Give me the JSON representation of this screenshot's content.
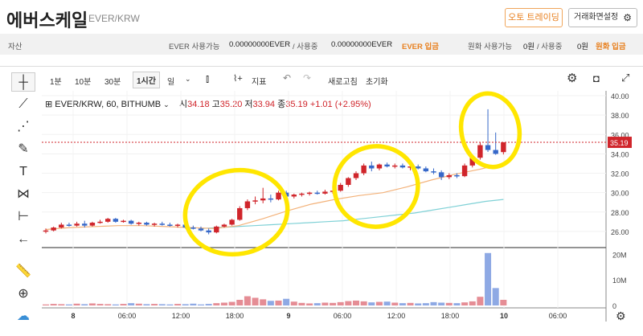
{
  "header": {
    "coin_name_ko": "에버스케일",
    "pair": "EVER/KRW",
    "auto_trading_button": "오토 트레이딩",
    "screen_settings_button": "거래화면설정"
  },
  "balances": {
    "asset_label": "자산",
    "ever_available_label": "EVER 사용가능",
    "ever_available_value": "0.00000000EVER",
    "ever_in_use_label": "/ 사용중",
    "ever_in_use_value": "0.00000000EVER",
    "ever_deposit": "EVER 입금",
    "krw_available_label": "원화 사용가능",
    "krw_available_value": "0원",
    "krw_in_use_label": "/ 사용중",
    "krw_in_use_value": "0원",
    "krw_deposit": "원화 입금"
  },
  "toolbar": {
    "intervals": [
      "1분",
      "10분",
      "30분",
      "1시간",
      "일"
    ],
    "selected_interval": "1시간",
    "indicator_label": "지표",
    "refresh_label": "새로고침",
    "reset_label": "초기화"
  },
  "legend": {
    "symbol": "EVER/KRW, 60, BITHUMB",
    "open_label": "시",
    "open": "34.18",
    "high_label": "고",
    "high": "35.20",
    "low_label": "저",
    "low": "33.94",
    "close_label": "종",
    "close": "35.19",
    "change": "+1.01 (+2.95%)"
  },
  "colors": {
    "up": "#d0252b",
    "down": "#3668c9",
    "highlight": "#ffe600",
    "accent": "#e8801f"
  },
  "chart_data": {
    "type": "candlestick",
    "price_axis_ticks": [
      "40.00",
      "38.00",
      "36.00",
      "35.19",
      "34.00",
      "32.00",
      "30.00",
      "28.00",
      "26.00"
    ],
    "volume_axis_ticks": [
      "20M",
      "10M",
      "0"
    ],
    "time_axis_ticks": [
      "8",
      "06:00",
      "12:00",
      "18:00",
      "9",
      "06:00",
      "12:00",
      "18:00",
      "10",
      "06:00"
    ],
    "last_price": 35.19,
    "ylim": [
      24.5,
      40.5
    ],
    "candles": [
      {
        "o": 26.0,
        "h": 26.3,
        "l": 25.8,
        "c": 26.1
      },
      {
        "o": 26.1,
        "h": 26.5,
        "l": 26.0,
        "c": 26.4
      },
      {
        "o": 26.4,
        "h": 26.9,
        "l": 26.3,
        "c": 26.7
      },
      {
        "o": 26.7,
        "h": 26.9,
        "l": 26.5,
        "c": 26.6
      },
      {
        "o": 26.6,
        "h": 27.0,
        "l": 26.5,
        "c": 26.8
      },
      {
        "o": 26.8,
        "h": 27.1,
        "l": 26.4,
        "c": 26.6
      },
      {
        "o": 26.6,
        "h": 27.0,
        "l": 26.5,
        "c": 26.9
      },
      {
        "o": 26.9,
        "h": 27.2,
        "l": 26.8,
        "c": 27.0
      },
      {
        "o": 27.0,
        "h": 27.4,
        "l": 26.9,
        "c": 27.3
      },
      {
        "o": 27.3,
        "h": 27.4,
        "l": 26.9,
        "c": 27.0
      },
      {
        "o": 27.0,
        "h": 27.2,
        "l": 26.9,
        "c": 27.1
      },
      {
        "o": 27.1,
        "h": 27.2,
        "l": 26.7,
        "c": 26.8
      },
      {
        "o": 26.8,
        "h": 27.0,
        "l": 26.6,
        "c": 26.9
      },
      {
        "o": 26.9,
        "h": 27.0,
        "l": 26.6,
        "c": 26.7
      },
      {
        "o": 26.7,
        "h": 26.9,
        "l": 26.5,
        "c": 26.8
      },
      {
        "o": 26.8,
        "h": 27.0,
        "l": 26.6,
        "c": 26.7
      },
      {
        "o": 26.7,
        "h": 26.9,
        "l": 26.5,
        "c": 26.6
      },
      {
        "o": 26.6,
        "h": 26.8,
        "l": 26.4,
        "c": 26.7
      },
      {
        "o": 26.7,
        "h": 26.8,
        "l": 26.3,
        "c": 26.4
      },
      {
        "o": 26.4,
        "h": 26.6,
        "l": 26.2,
        "c": 26.3
      },
      {
        "o": 26.3,
        "h": 26.5,
        "l": 26.0,
        "c": 26.1
      },
      {
        "o": 26.1,
        "h": 26.3,
        "l": 25.7,
        "c": 25.9
      },
      {
        "o": 25.9,
        "h": 26.6,
        "l": 25.8,
        "c": 26.5
      },
      {
        "o": 26.5,
        "h": 26.8,
        "l": 26.4,
        "c": 26.7
      },
      {
        "o": 26.7,
        "h": 27.3,
        "l": 26.6,
        "c": 27.2
      },
      {
        "o": 27.2,
        "h": 28.6,
        "l": 27.1,
        "c": 28.4
      },
      {
        "o": 28.4,
        "h": 29.3,
        "l": 28.2,
        "c": 29.1
      },
      {
        "o": 29.1,
        "h": 29.6,
        "l": 28.8,
        "c": 29.2
      },
      {
        "o": 29.2,
        "h": 30.5,
        "l": 28.9,
        "c": 29.4
      },
      {
        "o": 29.4,
        "h": 29.8,
        "l": 29.0,
        "c": 29.3
      },
      {
        "o": 29.3,
        "h": 30.2,
        "l": 29.2,
        "c": 30.0
      },
      {
        "o": 30.0,
        "h": 30.2,
        "l": 29.4,
        "c": 29.6
      },
      {
        "o": 29.6,
        "h": 29.9,
        "l": 29.4,
        "c": 29.8
      },
      {
        "o": 29.8,
        "h": 30.0,
        "l": 29.6,
        "c": 29.9
      },
      {
        "o": 29.9,
        "h": 30.1,
        "l": 29.7,
        "c": 30.0
      },
      {
        "o": 30.0,
        "h": 30.2,
        "l": 29.8,
        "c": 29.9
      },
      {
        "o": 29.9,
        "h": 30.3,
        "l": 29.8,
        "c": 30.1
      },
      {
        "o": 30.1,
        "h": 30.4,
        "l": 29.9,
        "c": 30.2
      },
      {
        "o": 30.2,
        "h": 31.0,
        "l": 30.1,
        "c": 30.8
      },
      {
        "o": 30.8,
        "h": 31.6,
        "l": 30.6,
        "c": 31.5
      },
      {
        "o": 31.5,
        "h": 32.2,
        "l": 31.3,
        "c": 32.0
      },
      {
        "o": 32.0,
        "h": 33.0,
        "l": 31.8,
        "c": 32.8
      },
      {
        "o": 32.8,
        "h": 33.2,
        "l": 32.2,
        "c": 32.5
      },
      {
        "o": 32.5,
        "h": 33.0,
        "l": 32.3,
        "c": 32.9
      },
      {
        "o": 32.9,
        "h": 33.1,
        "l": 32.6,
        "c": 32.7
      },
      {
        "o": 32.7,
        "h": 33.0,
        "l": 32.5,
        "c": 32.8
      },
      {
        "o": 32.8,
        "h": 33.0,
        "l": 32.5,
        "c": 32.6
      },
      {
        "o": 32.6,
        "h": 32.8,
        "l": 32.3,
        "c": 32.7
      },
      {
        "o": 32.7,
        "h": 32.9,
        "l": 32.4,
        "c": 32.5
      },
      {
        "o": 32.5,
        "h": 32.7,
        "l": 32.1,
        "c": 32.2
      },
      {
        "o": 32.2,
        "h": 32.5,
        "l": 31.9,
        "c": 32.1
      },
      {
        "o": 32.1,
        "h": 32.3,
        "l": 31.3,
        "c": 31.6
      },
      {
        "o": 31.6,
        "h": 32.0,
        "l": 31.4,
        "c": 31.8
      },
      {
        "o": 31.8,
        "h": 32.0,
        "l": 31.5,
        "c": 31.7
      },
      {
        "o": 31.7,
        "h": 33.0,
        "l": 31.6,
        "c": 32.8
      },
      {
        "o": 32.8,
        "h": 33.8,
        "l": 32.6,
        "c": 33.6
      },
      {
        "o": 33.6,
        "h": 35.2,
        "l": 33.4,
        "c": 34.9
      },
      {
        "o": 34.9,
        "h": 38.6,
        "l": 34.2,
        "c": 34.4
      },
      {
        "o": 34.4,
        "h": 36.2,
        "l": 33.9,
        "c": 34.0
      },
      {
        "o": 34.18,
        "h": 35.2,
        "l": 33.94,
        "c": 35.19
      }
    ],
    "volumes": [
      0.4,
      0.6,
      0.5,
      0.4,
      0.7,
      0.5,
      0.8,
      0.6,
      0.5,
      0.4,
      0.6,
      0.9,
      0.7,
      0.5,
      0.6,
      0.5,
      0.4,
      0.6,
      0.5,
      0.7,
      0.4,
      0.6,
      0.9,
      1.1,
      1.4,
      2.2,
      3.6,
      3.0,
      2.4,
      1.8,
      1.9,
      2.6,
      1.5,
      1.0,
      0.8,
      0.9,
      1.1,
      1.0,
      1.3,
      1.7,
      1.9,
      1.6,
      1.2,
      1.4,
      1.5,
      1.1,
      0.9,
      1.0,
      0.8,
      0.9,
      1.3,
      1.1,
      1.0,
      0.9,
      1.2,
      1.6,
      3.4,
      20.5,
      6.8,
      2.2
    ],
    "ma_slow": [
      26.3,
      26.4,
      26.5,
      26.6,
      26.7,
      26.8,
      26.9,
      27.0,
      27.1,
      27.3,
      27.5,
      27.7,
      27.9,
      28.2,
      28.5,
      28.8,
      29.1,
      29.3
    ],
    "ma_fast": [
      26.2,
      26.4,
      26.5,
      26.6,
      26.6,
      26.5,
      26.4,
      26.3,
      26.6,
      27.3,
      28.1,
      28.8,
      29.3,
      29.7,
      30.0,
      30.6,
      31.3,
      31.9,
      32.4,
      33.0
    ]
  }
}
